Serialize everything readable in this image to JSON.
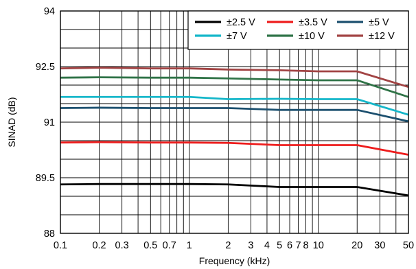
{
  "chart_data": {
    "type": "line",
    "xlabel": "Frequency (kHz)",
    "ylabel": "SINAD (dB)",
    "xscale": "log",
    "xlim": [
      0.1,
      50
    ],
    "ylim": [
      88,
      94
    ],
    "x_ticks": [
      0.1,
      0.2,
      0.3,
      0.5,
      0.7,
      1,
      2,
      3,
      4,
      5,
      6,
      7,
      8,
      10,
      20,
      30,
      50
    ],
    "x_tick_labels": [
      "0.1",
      "0.2",
      "0.3",
      "0.5",
      "0.7",
      "1",
      "2",
      "3",
      "4",
      "5",
      "6",
      "7",
      "8",
      "10",
      "20",
      "30",
      "50"
    ],
    "y_ticks": [
      88,
      89.5,
      91,
      92.5,
      94
    ],
    "y_tick_labels": [
      "88",
      "89.5",
      "91",
      "92.5",
      "94"
    ],
    "grid": true,
    "legend_position": "top-right",
    "x": [
      0.1,
      0.2,
      0.5,
      1,
      2,
      5,
      10,
      20,
      50
    ],
    "series": [
      {
        "name": "±2.5 V",
        "color": "#000000",
        "values": [
          89.32,
          89.33,
          89.33,
          89.33,
          89.32,
          89.25,
          89.25,
          89.25,
          89.02
        ]
      },
      {
        "name": "±3.5 V",
        "color": "#ee1c1c",
        "values": [
          90.45,
          90.46,
          90.45,
          90.45,
          90.44,
          90.38,
          90.38,
          90.38,
          90.12
        ]
      },
      {
        "name": "±5 V",
        "color": "#1b4f6e",
        "values": [
          91.38,
          91.39,
          91.38,
          91.38,
          91.38,
          91.33,
          91.33,
          91.33,
          91.02
        ]
      },
      {
        "name": "±7 V",
        "color": "#14b6c9",
        "values": [
          91.68,
          91.68,
          91.68,
          91.68,
          91.62,
          91.63,
          91.62,
          91.62,
          91.2
        ]
      },
      {
        "name": "±10 V",
        "color": "#2f7347",
        "values": [
          92.2,
          92.21,
          92.2,
          92.2,
          92.18,
          92.15,
          92.13,
          92.13,
          91.68
        ]
      },
      {
        "name": "±12 V",
        "color": "#a24444",
        "values": [
          92.45,
          92.47,
          92.45,
          92.45,
          92.42,
          92.4,
          92.37,
          92.37,
          91.95
        ]
      }
    ]
  }
}
